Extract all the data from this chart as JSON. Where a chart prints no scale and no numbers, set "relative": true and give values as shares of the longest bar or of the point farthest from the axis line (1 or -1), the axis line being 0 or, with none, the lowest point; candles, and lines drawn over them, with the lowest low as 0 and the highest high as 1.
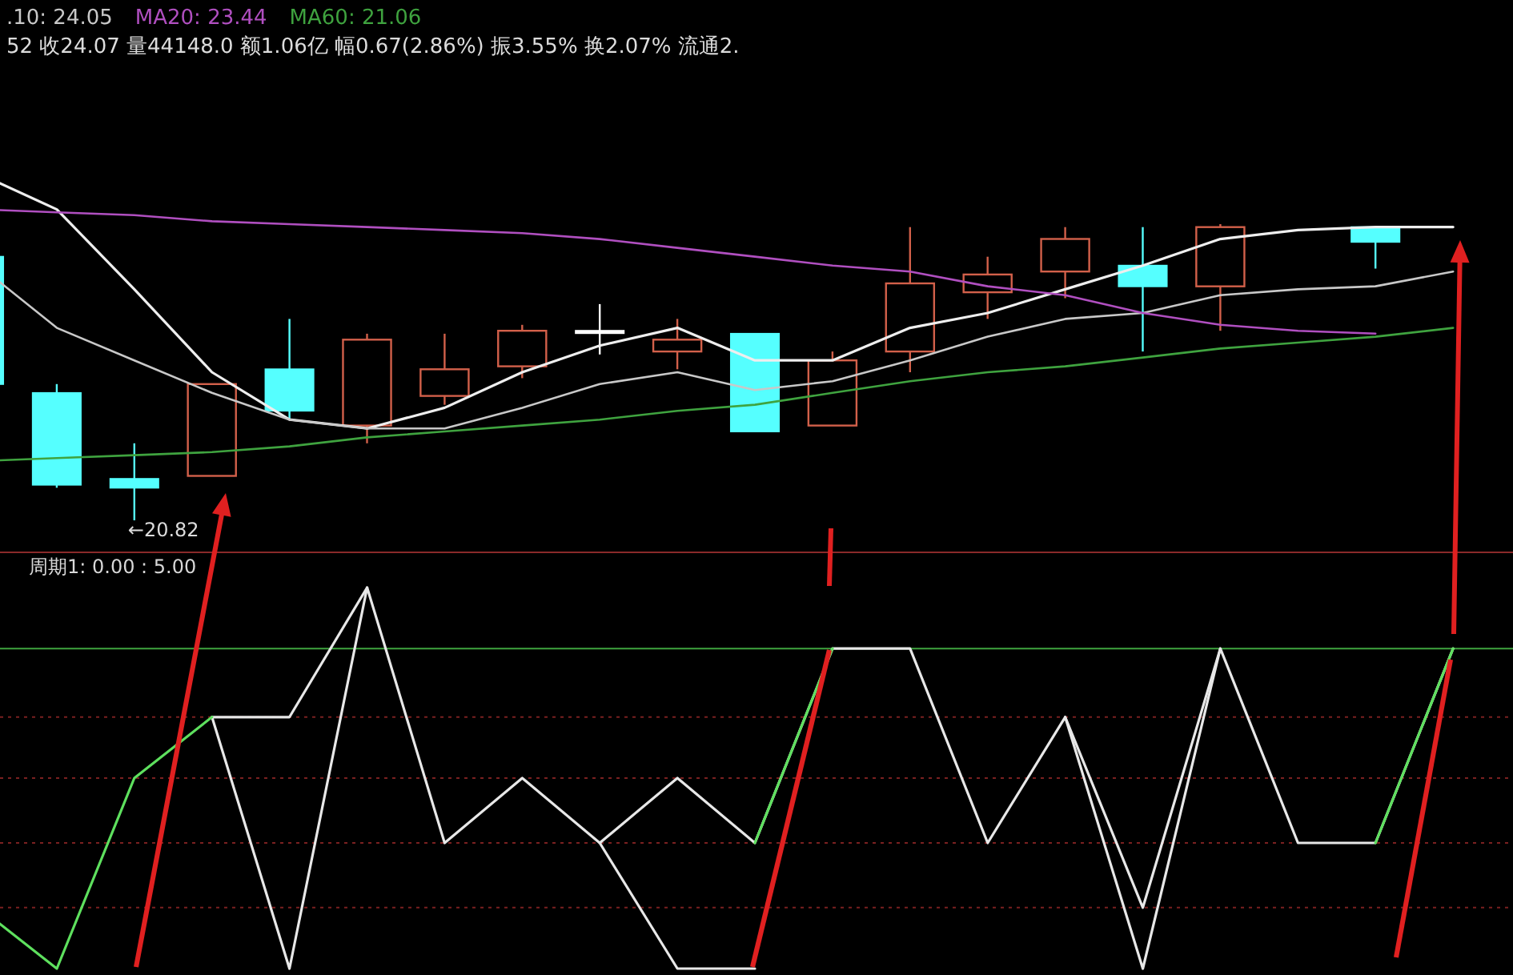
{
  "chart_data": [
    {
      "type": "candlestick",
      "relative": true,
      "legend": "top left",
      "categories": [
        null,
        null,
        null,
        null,
        null,
        null,
        null,
        null,
        null,
        null,
        null,
        null,
        null,
        null,
        null,
        null,
        null,
        null,
        null,
        null
      ],
      "ohlc": [
        [
          0.89,
          0.89,
          0.46,
          0.46
        ],
        [
          0.43,
          0.46,
          0.11,
          0.12
        ],
        [
          0.14,
          0.26,
          0,
          0.11
        ],
        [
          0.15,
          0.46,
          0.15,
          0.46
        ],
        [
          0.51,
          0.68,
          0.34,
          0.37
        ],
        [
          0.32,
          0.63,
          0.26,
          0.61
        ],
        [
          0.42,
          0.63,
          0.39,
          0.51
        ],
        [
          0.52,
          0.66,
          0.48,
          0.64
        ],
        [
          0.64,
          0.73,
          0.56,
          0.64
        ],
        [
          0.57,
          0.68,
          0.51,
          0.61
        ],
        [
          0.63,
          0.63,
          0.3,
          0.3
        ],
        [
          0.32,
          0.57,
          0.32,
          0.54
        ],
        [
          0.57,
          0.99,
          0.5,
          0.8
        ],
        [
          0.77,
          0.89,
          0.68,
          0.83
        ],
        [
          0.84,
          0.99,
          0.75,
          0.95
        ],
        [
          0.86,
          0.99,
          0.57,
          0.79
        ],
        [
          0.79,
          1,
          0.64,
          0.99
        ],
        null,
        [
          0.99,
          0.99,
          0.85,
          0.94
        ],
        null
      ],
      "colors": [
        "#55ffff",
        "#55ffff",
        "#55ffff",
        "#d2604a",
        "#55ffff",
        "#d2604a",
        "#d2604a",
        "#d2604a",
        "#ffffff",
        "#d2604a",
        "#55ffff",
        "#d2604a",
        "#d2604a",
        "#d2604a",
        "#d2604a",
        "#55ffff",
        "#d2604a",
        null,
        "#55ffff",
        null
      ],
      "series": [
        {
          "type": "line",
          "color": "#eeeeee",
          "values": [
            1.17,
            1.05,
            0.78,
            0.5,
            0.34,
            0.31,
            0.38,
            0.5,
            0.59,
            0.65,
            0.54,
            0.54,
            0.65,
            0.7,
            0.78,
            0.86,
            0.95,
            0.98,
            0.99,
            0.99
          ]
        },
        {
          "type": "line",
          "name": ".10: 24.05",
          "color": "#c8c8c8",
          "values": [
            0.86,
            0.65,
            0.54,
            0.43,
            0.34,
            0.31,
            0.31,
            0.38,
            0.46,
            0.5,
            0.44,
            0.47,
            0.54,
            0.62,
            0.68,
            0.7,
            0.76,
            0.78,
            0.79,
            0.84
          ]
        },
        {
          "type": "line",
          "name": "MA20: 23.44",
          "color": "#b04fc0",
          "values": [
            1.05,
            1.04,
            1.03,
            1.01,
            1.0,
            0.99,
            0.98,
            0.97,
            0.95,
            0.92,
            0.89,
            0.86,
            0.84,
            0.79,
            0.76,
            0.7,
            0.66,
            0.64,
            0.63,
            null
          ]
        },
        {
          "type": "line",
          "name": "MA60: 21.06",
          "color": "#3fa33f",
          "values": [
            0.2,
            0.21,
            0.22,
            0.23,
            0.25,
            0.28,
            0.3,
            0.32,
            0.34,
            0.37,
            0.39,
            0.43,
            0.47,
            0.5,
            0.52,
            0.55,
            0.58,
            0.6,
            0.62,
            0.65
          ]
        }
      ],
      "annotations": [
        "52 收24.07 量44148.0 额1.06亿 幅0.67(2.86%) 振3.55% 换2.07% 流通2.",
        "←20.82"
      ]
    },
    {
      "type": "line",
      "relative": true,
      "title": "周期1: 0.00 : 5.00",
      "categories": [
        null,
        null,
        null,
        null,
        null,
        null,
        null,
        null,
        null,
        null,
        null,
        null,
        null,
        null,
        null,
        null,
        null,
        null,
        null,
        null
      ],
      "series": [
        {
          "color": "#e8e8e8",
          "values": [
            null,
            null,
            null,
            0.66,
            0.66,
            1.0,
            0.33,
            0.5,
            0.33,
            0.5,
            0.33,
            0.84,
            0.84,
            0.33,
            0.66,
            0.16,
            0.84,
            0.33,
            0.33,
            0.84
          ]
        },
        {
          "color": "#e8e8e8",
          "values": [
            null,
            null,
            null,
            0.66,
            0,
            1.0,
            null,
            null,
            0.33,
            0,
            0,
            null,
            null,
            null,
            0.66,
            0,
            0.84,
            null,
            null,
            null
          ]
        },
        {
          "color": "#5ee05e",
          "values": [
            0.16,
            0,
            0.5,
            0.66,
            null,
            null,
            null,
            null,
            null,
            null,
            0.33,
            0.84,
            null,
            null,
            null,
            null,
            null,
            null,
            0.33,
            0.84
          ]
        }
      ],
      "ref_lines": [
        {
          "axis": "y",
          "value": 0.84,
          "color": "#3fa33f",
          "line_style": "solid"
        },
        {
          "axis": "y",
          "value": 0.66,
          "color": "#7a2020",
          "line_style": "dotted"
        },
        {
          "axis": "y",
          "value": 0.5,
          "color": "#7a2020",
          "line_style": "dotted"
        },
        {
          "axis": "y",
          "value": 0.33,
          "color": "#7a2020",
          "line_style": "dotted"
        },
        {
          "axis": "y",
          "value": 0.16,
          "color": "#7a2020",
          "line_style": "dotted"
        }
      ]
    }
  ]
}
